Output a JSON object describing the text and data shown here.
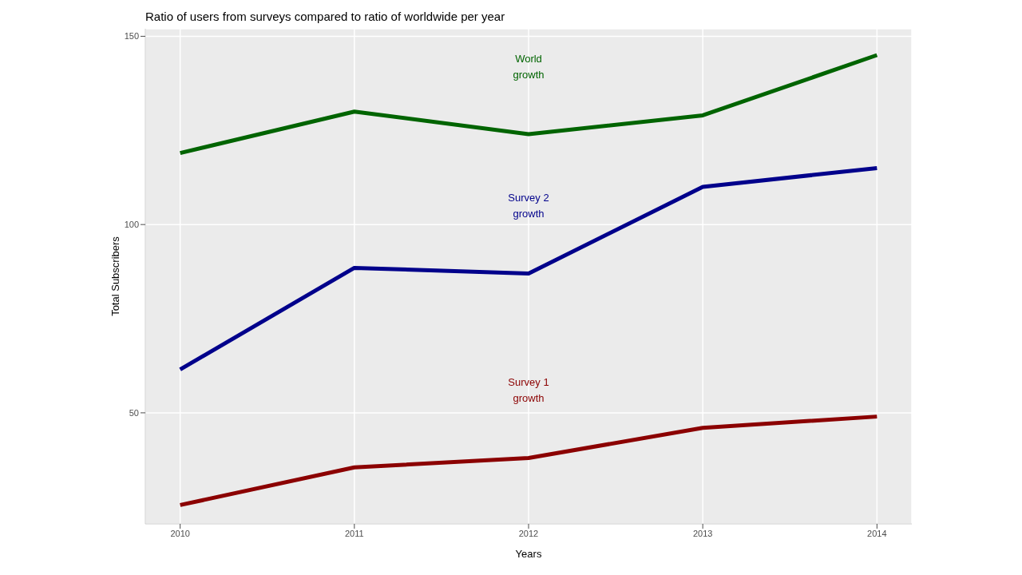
{
  "chart_data": {
    "type": "line",
    "title": "Ratio of users from surveys compared to ratio of worldwide per year",
    "xlabel": "Years",
    "ylabel": "Total Subscribers",
    "x": [
      2010,
      2011,
      2012,
      2013,
      2014
    ],
    "series": [
      {
        "color": "#006400",
        "values": [
          119,
          130,
          124,
          129,
          145
        ]
      },
      {
        "color": "#00008b",
        "values": [
          61.5,
          88.5,
          87,
          110,
          115
        ]
      },
      {
        "color": "#8b0000",
        "values": [
          25.5,
          35.5,
          38,
          46,
          49
        ]
      }
    ],
    "annotations": [
      "World\ngrowth",
      "Survey 2\ngrowth",
      "Survey 1\ngrowth"
    ],
    "xlim": [
      2009.8,
      2014.2
    ],
    "ylim": [
      20.5,
      152
    ],
    "xticks": [
      2010,
      2011,
      2012,
      2013,
      2014
    ],
    "yticks": [
      50,
      100,
      150
    ],
    "grid": true,
    "line_style": "solid"
  }
}
